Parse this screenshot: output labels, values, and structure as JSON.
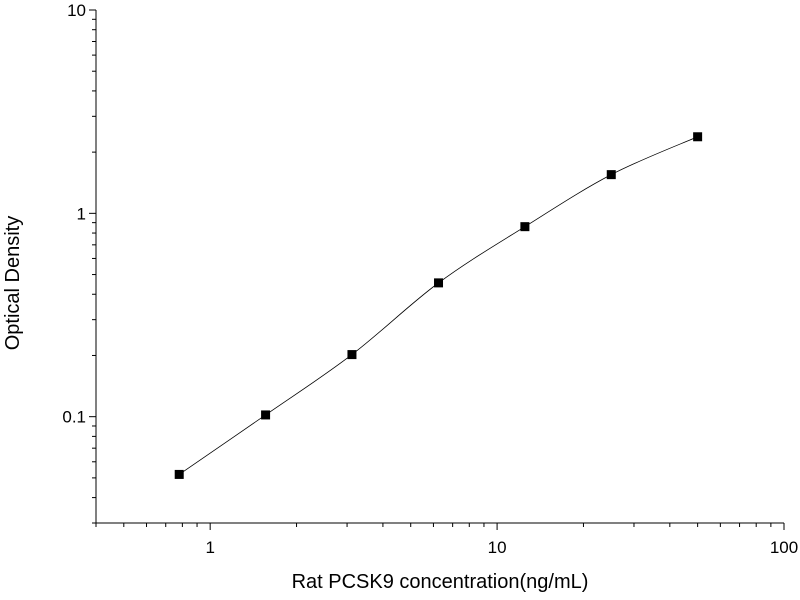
{
  "chart_data": {
    "type": "scatter",
    "xlabel": "Rat PCSK9 concentration(ng/mL)",
    "ylabel": "Optical Density",
    "x_scale": "log",
    "y_scale": "log",
    "xlim": [
      0.4,
      100
    ],
    "ylim": [
      0.03,
      10
    ],
    "x_ticks": [
      {
        "value": 1,
        "label": "1"
      },
      {
        "value": 10,
        "label": "10"
      },
      {
        "value": 100,
        "label": "100"
      }
    ],
    "y_ticks": [
      {
        "value": 0.1,
        "label": "0.1"
      },
      {
        "value": 1,
        "label": "1"
      },
      {
        "value": 10,
        "label": "10"
      }
    ],
    "grid": false,
    "series": [
      {
        "x": [
          0.78,
          1.56,
          3.12,
          6.25,
          12.5,
          25,
          50
        ],
        "y": [
          0.052,
          0.102,
          0.202,
          0.455,
          0.86,
          1.55,
          2.38
        ],
        "marker": "square",
        "line": "fitted-curve",
        "color": "#000000"
      }
    ]
  }
}
